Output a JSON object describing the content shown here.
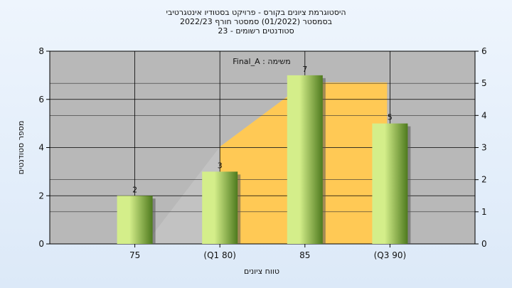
{
  "chart_data": {
    "type": "bar",
    "title_lines": [
      "היסטוגרמת ציונים בקורס - פרויקט בסטודיו אינטגרטיבי",
      "בסמסטר  (01/2022)  סמסטר חורף 2022/23",
      "סטודנטים רשומים - 23"
    ],
    "annotation": "משימה : Final_A",
    "xlabel": "טווח ציונים",
    "ylabel": "מספר סטודנטים",
    "categories": [
      "75",
      "(Q1 80)",
      "85",
      "(Q3 90)"
    ],
    "values": [
      2,
      3,
      7,
      5
    ],
    "data_labels": [
      "2",
      "3",
      "7",
      "5"
    ],
    "ylim": [
      0,
      8
    ],
    "yticks": [
      "0",
      "2",
      "4",
      "6",
      "8"
    ],
    "y2lim": [
      0,
      6
    ],
    "y2ticks": [
      "0",
      "1",
      "2",
      "3",
      "4",
      "5",
      "6"
    ],
    "grid": true,
    "colors": {
      "bar_light": "#d4ee8a",
      "bar_dark": "#4e7a1e",
      "area_gray": "#c2c2c2",
      "area_gold": "#ffc955",
      "plot_bg": "#b8b8b8"
    }
  }
}
